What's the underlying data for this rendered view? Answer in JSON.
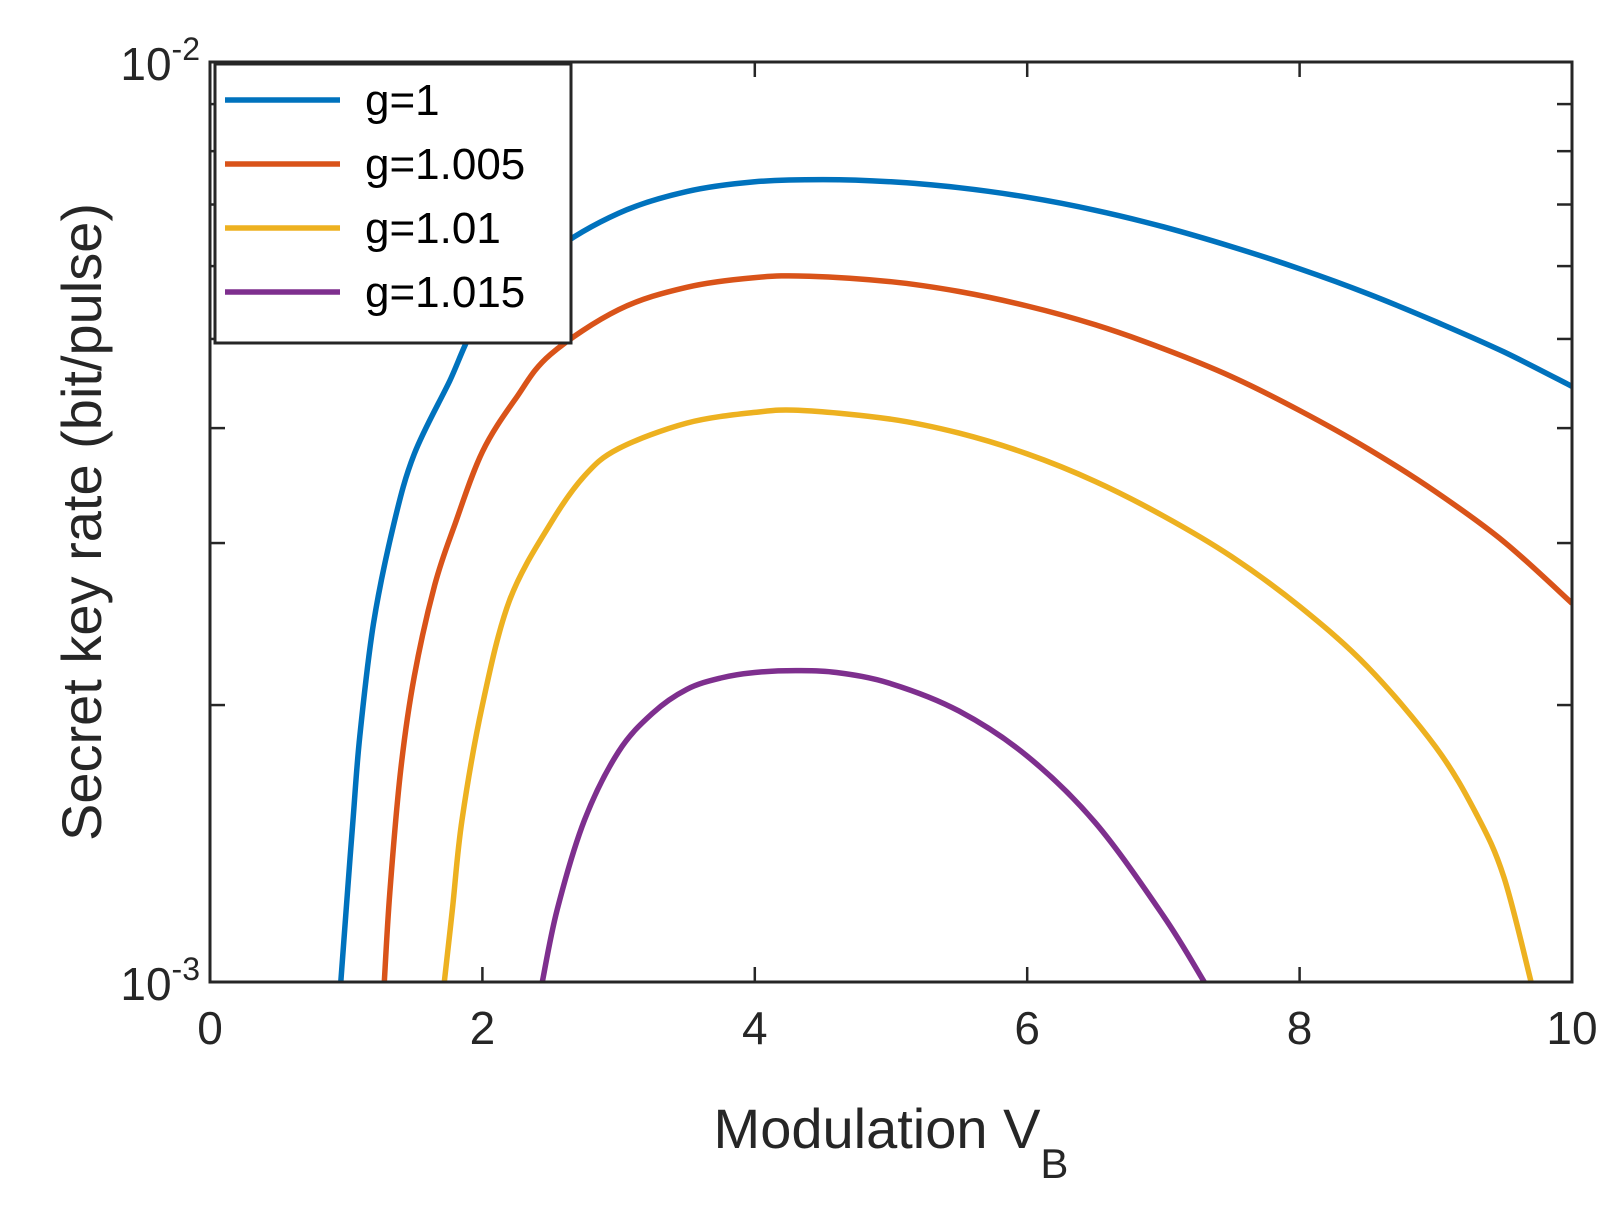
{
  "chart_data": {
    "type": "line",
    "title": "",
    "xlabel": "Modulation V",
    "xlabel_subscript": "B",
    "ylabel": "Secret key rate (bit/pulse)",
    "xlim": [
      0,
      10
    ],
    "ylim": [
      0.001,
      0.01
    ],
    "yscale": "log",
    "xticks": [
      0,
      2,
      4,
      6,
      8,
      10
    ],
    "xtick_labels": [
      "0",
      "2",
      "4",
      "6",
      "8",
      "10"
    ],
    "yticks": [
      {
        "base": "10",
        "exp": "-3",
        "value": 0.001
      },
      {
        "base": "10",
        "exp": "-2",
        "value": 0.01
      }
    ],
    "grid": false,
    "legend_position": "top-left",
    "series": [
      {
        "name": "g=1",
        "color": "#0072BD",
        "x": [
          0.96,
          1.0,
          1.05,
          1.1,
          1.2,
          1.35,
          1.5,
          1.75,
          2.0,
          2.5,
          3.0,
          3.5,
          4.0,
          4.5,
          5.0,
          5.5,
          6.0,
          6.5,
          7.0,
          7.5,
          8.0,
          8.5,
          9.0,
          9.5,
          10.0
        ],
        "y": [
          0.001,
          0.0012,
          0.0015,
          0.00185,
          0.00245,
          0.00315,
          0.00375,
          0.00447,
          0.0053,
          0.0062,
          0.00685,
          0.00723,
          0.00741,
          0.00745,
          0.00741,
          0.0073,
          0.00713,
          0.0069,
          0.00662,
          0.0063,
          0.00596,
          0.0056,
          0.00522,
          0.00484,
          0.00444
        ]
      },
      {
        "name": "g=1.005",
        "color": "#D95319",
        "x": [
          1.28,
          1.32,
          1.4,
          1.5,
          1.65,
          1.8,
          2.0,
          2.25,
          2.5,
          3.0,
          3.5,
          4.0,
          4.4,
          5.0,
          5.5,
          6.0,
          6.5,
          7.0,
          7.5,
          8.0,
          8.5,
          9.0,
          9.5,
          10.0
        ],
        "y": [
          0.001,
          0.00125,
          0.0017,
          0.00215,
          0.0027,
          0.00315,
          0.00377,
          0.00432,
          0.00481,
          0.00538,
          0.00569,
          0.00583,
          0.00585,
          0.00577,
          0.00563,
          0.00543,
          0.00518,
          0.00488,
          0.00455,
          0.00418,
          0.0038,
          0.00341,
          0.00301,
          0.00258
        ]
      },
      {
        "name": "g=1.01",
        "color": "#EDB120",
        "x": [
          1.72,
          1.78,
          1.85,
          2.0,
          2.2,
          2.5,
          2.75,
          3.0,
          3.5,
          4.0,
          4.35,
          5.0,
          5.5,
          6.0,
          6.5,
          7.0,
          7.5,
          8.0,
          8.5,
          9.0,
          9.3,
          9.5,
          9.7
        ],
        "y": [
          0.001,
          0.0012,
          0.0015,
          0.002,
          0.0026,
          0.00315,
          0.00355,
          0.0038,
          0.00405,
          0.00416,
          0.00418,
          0.00409,
          0.00395,
          0.00375,
          0.0035,
          0.00321,
          0.0029,
          0.00256,
          0.0022,
          0.0018,
          0.00152,
          0.0013,
          0.001
        ]
      },
      {
        "name": "g=1.015",
        "color": "#7E2F8E",
        "x": [
          2.44,
          2.55,
          2.75,
          3.0,
          3.25,
          3.5,
          3.75,
          4.0,
          4.3,
          4.6,
          5.0,
          5.5,
          6.0,
          6.5,
          7.0,
          7.3
        ],
        "y": [
          0.001,
          0.0012,
          0.0015,
          0.00178,
          0.00196,
          0.00208,
          0.00214,
          0.00217,
          0.00218,
          0.00217,
          0.00211,
          0.00197,
          0.00176,
          0.00149,
          0.00118,
          0.001
        ]
      }
    ]
  }
}
